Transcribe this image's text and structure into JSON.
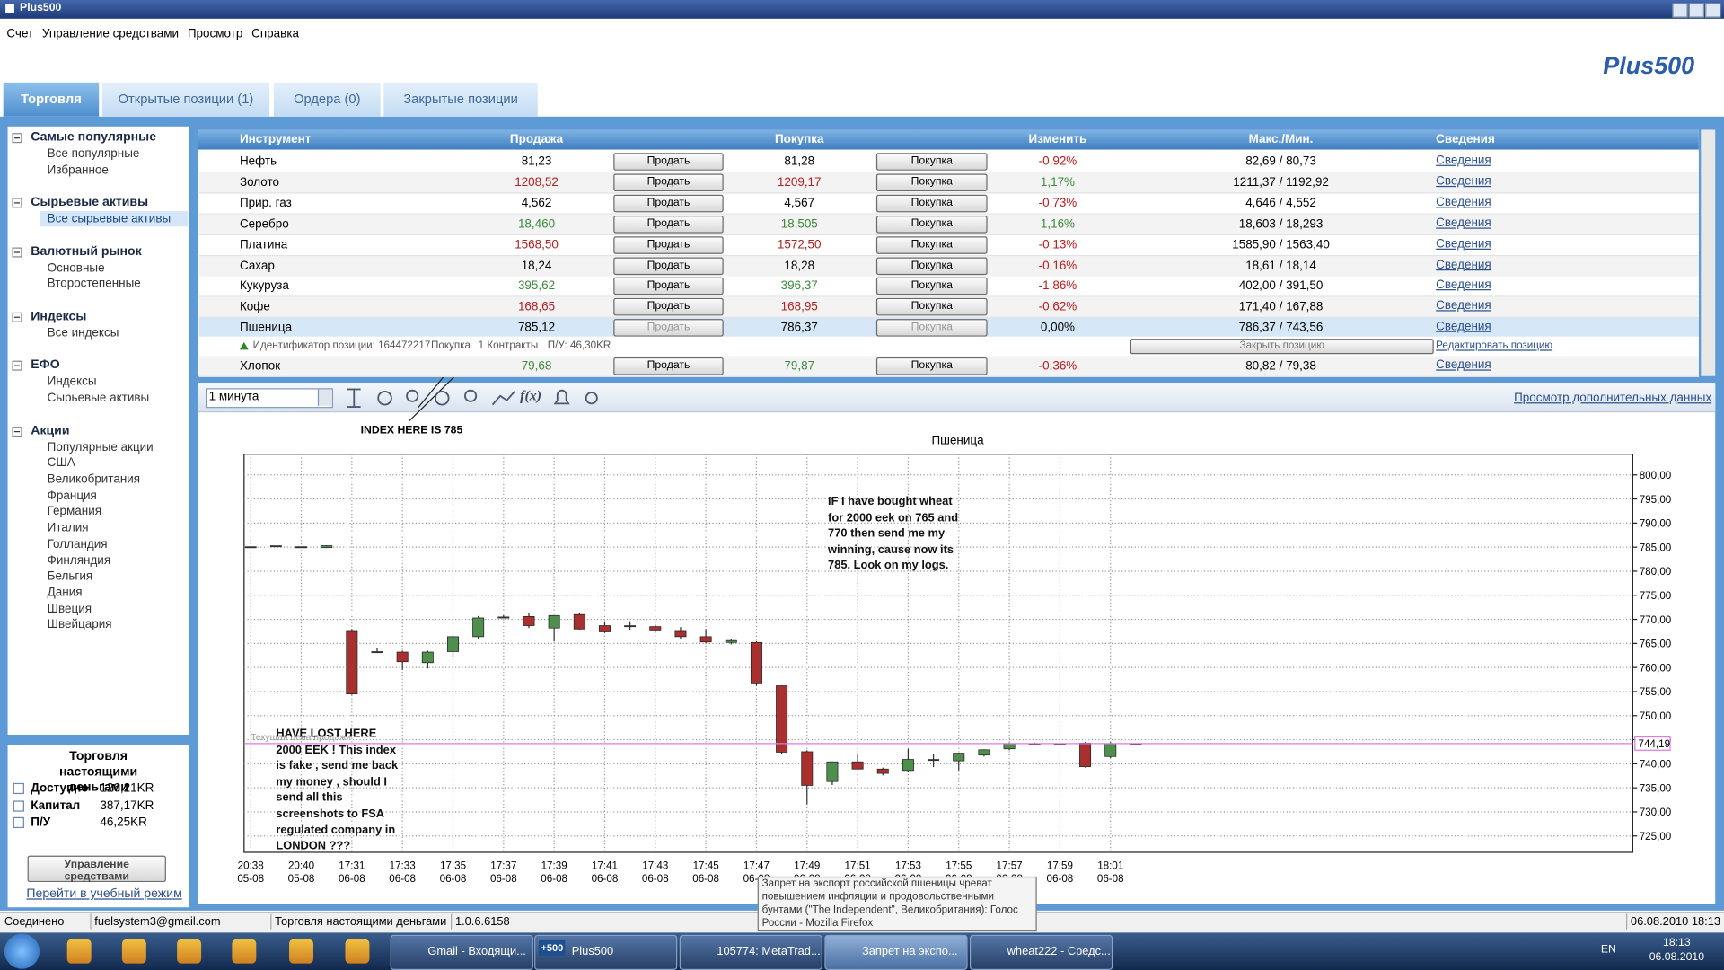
{
  "window": {
    "title": "Plus500",
    "menu": [
      "Счет",
      "Управление средствами",
      "Просмотр",
      "Справка"
    ],
    "logo": "Plus500"
  },
  "tabs": [
    "Торговля",
    "Открытые позиции (1)",
    "Ордера (0)",
    "Закрытые позиции"
  ],
  "sidebar": {
    "groups": [
      {
        "title": "Самые популярные",
        "items": [
          "Все популярные",
          "Избранное"
        ]
      },
      {
        "title": "Сырьевые активы",
        "items": [
          "Все сырьевые активы"
        ]
      },
      {
        "title": "Валютный рынок",
        "items": [
          "Основные",
          "Второстепенные"
        ]
      },
      {
        "title": "Индексы",
        "items": [
          "Все индексы"
        ]
      },
      {
        "title": "ЕФО",
        "items": [
          "Индексы",
          "Сырьевые активы"
        ]
      },
      {
        "title": "Акции",
        "items": [
          "Популярные акции",
          "США",
          "Великобритания",
          "Франция",
          "Германия",
          "Италия",
          "Голландия",
          "Финляндия",
          "Бельгия",
          "Дания",
          "Швеция",
          "Швейцария"
        ]
      }
    ]
  },
  "account": {
    "title": "Торговля настоящими деньгами",
    "rows": [
      [
        "Доступно",
        "126,21KR"
      ],
      [
        "Капитал",
        "387,17KR"
      ],
      [
        "П/У",
        "46,25KR"
      ]
    ],
    "button": "Управление средствами",
    "link": "Перейти в учебный режим"
  },
  "table": {
    "headers": [
      "Инструмент",
      "Продажа",
      "Покупка",
      "Изменить",
      "Макс./Мин.",
      "Сведения"
    ],
    "sell_button": "Продать",
    "buy_button": "Покупка",
    "info_link": "Сведения",
    "rows": [
      {
        "instrument": "Нефть",
        "sell": "81,23",
        "buy": "81,28",
        "change": "-0,92%",
        "range": "82,69 / 80,73",
        "color": "#000000"
      },
      {
        "instrument": "Золото",
        "sell": "1208,52",
        "buy": "1209,17",
        "change": "1,17%",
        "range": "1211,37 / 1192,92",
        "color": "#b02020"
      },
      {
        "instrument": "Прир. газ",
        "sell": "4,562",
        "buy": "4,567",
        "change": "-0,73%",
        "range": "4,646 / 4,552",
        "color": "#000000"
      },
      {
        "instrument": "Серебро",
        "sell": "18,460",
        "buy": "18,505",
        "change": "1,16%",
        "range": "18,603 / 18,293",
        "color": "#3a8a3a"
      },
      {
        "instrument": "Платина",
        "sell": "1568,50",
        "buy": "1572,50",
        "change": "-0,13%",
        "range": "1585,90 / 1563,40",
        "color": "#b02020"
      },
      {
        "instrument": "Сахар",
        "sell": "18,24",
        "buy": "18,28",
        "change": "-0,16%",
        "range": "18,61 / 18,14",
        "color": "#000000"
      },
      {
        "instrument": "Кукуруза",
        "sell": "395,62",
        "buy": "396,37",
        "change": "-1,86%",
        "range": "402,00 / 391,50",
        "color": "#3a8a3a"
      },
      {
        "instrument": "Кофе",
        "sell": "168,65",
        "buy": "168,95",
        "change": "-0,62%",
        "range": "171,40 / 167,88",
        "color": "#b02020"
      },
      {
        "instrument": "Пшеница",
        "sell": "785,12",
        "buy": "786,37",
        "change": "0,00%",
        "range": "786,37 / 743,56",
        "color": "#000000",
        "selected": true
      },
      {
        "instrument": "Хлопок",
        "sell": "79,68",
        "buy": "79,87",
        "change": "-0,36%",
        "range": "80,82 / 79,38",
        "color": "#3a8a3a"
      }
    ],
    "position": {
      "id": "Идентификатор позиции: 164472217",
      "direction": "Покупка",
      "amount": "1 Контракты",
      "pl": "П/У: 46,30KR",
      "close_button": "Закрыть позицию",
      "edit_link": "Редактировать позицию"
    }
  },
  "toolbar": {
    "interval": "1 минута",
    "fx": "f(x)",
    "more_link": "Просмотр дополнительных данных"
  },
  "chart_data": {
    "type": "candlestick",
    "title": "Пшеница",
    "categories": [
      "20:38",
      null,
      "20:40",
      null,
      "17:31",
      null,
      "17:33",
      null,
      "17:35",
      null,
      "17:37",
      null,
      "17:39",
      null,
      "17:41",
      null,
      "17:43",
      null,
      "17:45",
      null,
      "17:47",
      null,
      "17:49",
      null,
      "17:51",
      null,
      "17:53",
      null,
      "17:55",
      null,
      "17:57",
      null,
      "17:59",
      null,
      "18:01",
      null
    ],
    "dates": [
      "05-08",
      null,
      "05-08",
      null,
      "06-08",
      null,
      "06-08",
      null,
      "06-08",
      null,
      "06-08",
      null,
      "06-08",
      null,
      "06-08",
      null,
      "06-08",
      null,
      "06-08",
      null,
      "06-08",
      null,
      "06-08",
      null,
      "06-08",
      null,
      "06-08",
      null,
      "06-08",
      null,
      "06-08",
      null,
      "06-08",
      null,
      "06-08",
      null
    ],
    "open": [
      785.1,
      785.3,
      785.1,
      784.9,
      767.5,
      763.3,
      763.2,
      761.0,
      763.3,
      766.4,
      770.5,
      770.6,
      768.2,
      771.0,
      768.7,
      768.7,
      768.5,
      767.5,
      766.4,
      765.2,
      765.2,
      756.2,
      742.5,
      736.3,
      740.4,
      738.9,
      738.6,
      740.9,
      740.6,
      741.8,
      743.1,
      744.2,
      744.2,
      744.3,
      741.5,
      744.2
    ],
    "high": [
      785.1,
      785.3,
      785.1,
      785.4,
      768.0,
      764.0,
      763.5,
      763.5,
      766.6,
      770.7,
      770.9,
      771.4,
      770.9,
      771.3,
      769.6,
      769.6,
      768.9,
      768.4,
      768.0,
      765.9,
      765.5,
      756.3,
      742.8,
      740.5,
      742.0,
      739.2,
      743.1,
      742.0,
      742.3,
      743.0,
      744.4,
      744.4,
      744.2,
      744.5,
      744.5,
      744.2
    ],
    "low": [
      785.1,
      785.3,
      785.1,
      784.8,
      754.3,
      763.0,
      759.5,
      759.8,
      762.3,
      765.8,
      770.4,
      768.2,
      765.4,
      767.8,
      767.2,
      767.8,
      767.3,
      766.0,
      765.0,
      764.8,
      756.2,
      742.0,
      731.6,
      735.6,
      738.8,
      737.6,
      738.2,
      739.3,
      738.6,
      741.5,
      742.8,
      744.0,
      744.2,
      739.2,
      741.2,
      744.2
    ],
    "close": [
      785.1,
      785.3,
      785.1,
      785.3,
      754.5,
      763.3,
      761.2,
      763.2,
      766.4,
      770.3,
      770.5,
      768.7,
      770.8,
      768.0,
      767.4,
      768.7,
      767.6,
      766.4,
      765.3,
      765.6,
      756.6,
      742.4,
      735.5,
      740.4,
      738.9,
      738.0,
      740.9,
      740.9,
      742.2,
      742.9,
      744.2,
      744.2,
      744.2,
      739.4,
      744.2,
      744.2
    ],
    "ylim": [
      721.6,
      804.3
    ],
    "yticks": [
      {
        "value": 725,
        "label": "725,00"
      },
      {
        "value": 730,
        "label": "730,00"
      },
      {
        "value": 735,
        "label": "735,00"
      },
      {
        "value": 740,
        "label": "740,00"
      },
      {
        "value": 745,
        "label": "745,00"
      },
      {
        "value": 750,
        "label": "750,00"
      },
      {
        "value": 755,
        "label": "755,00"
      },
      {
        "value": 760,
        "label": "760,00"
      },
      {
        "value": 765,
        "label": "765,00"
      },
      {
        "value": 770,
        "label": "770,00"
      },
      {
        "value": 775,
        "label": "775,00"
      },
      {
        "value": 780,
        "label": "780,00"
      },
      {
        "value": 785,
        "label": "785,00"
      },
      {
        "value": 790,
        "label": "790,00"
      },
      {
        "value": 795,
        "label": "795,00"
      },
      {
        "value": 800,
        "label": "800,00"
      }
    ],
    "grid": true,
    "up_color": "#4e8f4e",
    "down_color": "#a8302e",
    "current_price": 744.19,
    "current_price_label": "744,19",
    "current_price_caption": "Текущая цена продажи",
    "annotations": [
      "INDEX HERE IS 785",
      "IF I have bought wheat for 2000 eek on 765 and 770 then send me my winning, cause now its 785. Look on my logs.",
      "HAVE LOST HERE 2000 EEK ! This index is fake , send me back my money , should I send all this screenshots to FSA regulated company in LONDON ???"
    ]
  },
  "tooltip": "Запрет на экспорт российской пшеницы чреват повышением инфляции и продовольственными бунтами (\"The Independent\", Великобритания): Голос России - Mozilla Firefox",
  "status_bar": [
    "Соединено",
    "fuelsystem3@gmail.com",
    "Торговля настоящими деньгами",
    "1.0.6.6158",
    "06.08.2010 18:13"
  ],
  "taskbar": {
    "items": [
      "Gmail - Входящи...",
      "Plus500",
      "105774: MetaTrad...",
      "Запрет на экспо...",
      "wheat222 - Средс..."
    ],
    "plus_icon": "+500",
    "language": "EN",
    "time": "18:13",
    "date": "06.08.2010"
  }
}
